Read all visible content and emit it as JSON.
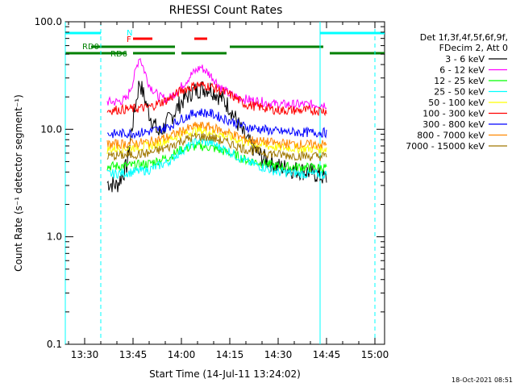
{
  "chart_data": {
    "type": "line",
    "title": "RHESSI Count Rates",
    "xlabel": "Start Time (14-Jul-11 13:24:02)",
    "ylabel": "Count Rate (s⁻¹ detector segment⁻¹)",
    "yscale": "log",
    "ylim": [
      0.1,
      100
    ],
    "xlim": [
      "13:24",
      "15:03"
    ],
    "x_ticks": [
      "13:30",
      "13:45",
      "14:00",
      "14:15",
      "14:30",
      "14:45",
      "15:00"
    ],
    "y_ticks": [
      "0.1",
      "1.0",
      "10.0",
      "100.0"
    ],
    "legend_header": [
      "Det 1f,3f,4f,5f,6f,9f,",
      "FDecim 2, Att 0"
    ],
    "legend_placement": "right",
    "series": [
      {
        "name": "3 - 6 keV",
        "color": "#000000",
        "x": [
          "13:37",
          "13:40",
          "13:43",
          "13:45",
          "13:47",
          "13:50",
          "13:53",
          "13:56",
          "14:00",
          "14:03",
          "14:06",
          "14:09",
          "14:12",
          "14:15",
          "14:20",
          "14:25",
          "14:30",
          "14:35",
          "14:40",
          "14:45"
        ],
        "values": [
          3.2,
          3.0,
          4.5,
          12,
          28,
          14,
          9,
          12,
          18,
          22,
          24,
          24,
          20,
          16,
          8,
          5.5,
          4.5,
          4.2,
          4.0,
          3.5
        ]
      },
      {
        "name": "6 - 12 keV",
        "color": "#ff00ff",
        "x": [
          "13:37",
          "13:40",
          "13:43",
          "13:45",
          "13:47",
          "13:50",
          "13:53",
          "13:56",
          "14:00",
          "14:03",
          "14:06",
          "14:09",
          "14:12",
          "14:15",
          "14:20",
          "14:25",
          "14:30",
          "14:35",
          "14:40",
          "14:45"
        ],
        "values": [
          18,
          18,
          19,
          28,
          48,
          26,
          20,
          19,
          25,
          32,
          38,
          32,
          25,
          21,
          19,
          18,
          17,
          17,
          17,
          17
        ]
      },
      {
        "name": "12 - 25 keV",
        "color": "#00ff00",
        "x": [
          "13:37",
          "13:45",
          "13:50",
          "13:56",
          "14:00",
          "14:05",
          "14:09",
          "14:15",
          "14:20",
          "14:30",
          "14:40",
          "14:45"
        ],
        "values": [
          4.5,
          4.6,
          4.8,
          5.5,
          6.5,
          7.0,
          6.8,
          6.0,
          5.2,
          4.5,
          4.4,
          4.4
        ]
      },
      {
        "name": "25 - 50 keV",
        "color": "#00ffff",
        "x": [
          "13:37",
          "13:45",
          "13:50",
          "13:56",
          "14:00",
          "14:05",
          "14:09",
          "14:15",
          "14:20",
          "14:30",
          "14:40",
          "14:45"
        ],
        "values": [
          3.8,
          4.0,
          4.2,
          5.0,
          6.3,
          7.8,
          7.5,
          6.2,
          5.0,
          4.0,
          3.8,
          3.8
        ]
      },
      {
        "name": "50 - 100 keV",
        "color": "#ffff00",
        "x": [
          "13:37",
          "13:45",
          "13:50",
          "13:56",
          "14:00",
          "14:05",
          "14:09",
          "14:15",
          "14:20",
          "14:30",
          "14:40",
          "14:45"
        ],
        "values": [
          6.5,
          6.8,
          7.0,
          8.0,
          9.0,
          9.8,
          9.5,
          8.5,
          7.5,
          6.8,
          6.6,
          6.6
        ]
      },
      {
        "name": "100 - 300 keV",
        "color": "#ff0000",
        "x": [
          "13:37",
          "13:45",
          "13:50",
          "13:56",
          "14:00",
          "14:05",
          "14:09",
          "14:15",
          "14:20",
          "14:30",
          "14:40",
          "14:45"
        ],
        "values": [
          15,
          15.5,
          16,
          19,
          23,
          26,
          25,
          21,
          17,
          15,
          15,
          15
        ]
      },
      {
        "name": "300 - 800 keV",
        "color": "#0000ff",
        "x": [
          "13:37",
          "13:45",
          "13:50",
          "13:56",
          "14:00",
          "14:05",
          "14:09",
          "14:15",
          "14:20",
          "14:30",
          "14:40",
          "14:45"
        ],
        "values": [
          9,
          9.2,
          9.5,
          10.5,
          12.5,
          14.5,
          14,
          12,
          10.5,
          9.5,
          9.3,
          9.3
        ]
      },
      {
        "name": "800 - 7000 keV",
        "color": "#ff8800",
        "x": [
          "13:37",
          "13:45",
          "13:50",
          "13:56",
          "14:00",
          "14:05",
          "14:09",
          "14:15",
          "14:20",
          "14:30",
          "14:40",
          "14:45"
        ],
        "values": [
          7.2,
          7.4,
          7.6,
          8.5,
          9.6,
          10.8,
          10.5,
          9.2,
          8.0,
          7.4,
          7.2,
          7.2
        ]
      },
      {
        "name": "7000 - 15000 keV",
        "color": "#a07800",
        "x": [
          "13:37",
          "13:45",
          "13:50",
          "13:56",
          "14:00",
          "14:05",
          "14:09",
          "14:15",
          "14:20",
          "14:30",
          "14:40",
          "14:45"
        ],
        "values": [
          5.6,
          5.8,
          6.0,
          6.8,
          7.8,
          8.6,
          8.4,
          7.4,
          6.5,
          5.8,
          5.6,
          5.6
        ]
      }
    ],
    "annotations": [
      {
        "text": "N",
        "color": "#00ffff"
      },
      {
        "text": "F",
        "color": "#ff0000"
      },
      {
        "text": "RD0",
        "color": "#008000"
      },
      {
        "text": "RD6",
        "color": "#008000"
      }
    ],
    "bars": {
      "night": {
        "color": "#00ffff",
        "intervals": [
          [
            "13:24",
            "13:35"
          ],
          [
            "14:43",
            "15:03"
          ]
        ]
      },
      "flare": {
        "color": "#ff0000",
        "intervals": [
          [
            "13:45",
            "13:51"
          ],
          [
            "14:04",
            "14:08"
          ]
        ]
      },
      "rd_upper": {
        "color": "#008000",
        "intervals": [
          [
            "13:32",
            "13:58"
          ],
          [
            "14:15",
            "14:44"
          ]
        ]
      },
      "rd_lower": {
        "color": "#008000",
        "intervals": [
          [
            "13:24",
            "13:43"
          ],
          [
            "13:45",
            "13:58"
          ],
          [
            "14:00",
            "14:14"
          ],
          [
            "14:46",
            "15:03"
          ]
        ]
      }
    },
    "vlines": {
      "color": "#00ffff",
      "solid": [
        "13:24",
        "14:43"
      ],
      "dashed": [
        "13:35",
        "15:00"
      ]
    },
    "timestamp": "18-Oct-2021 08:51"
  }
}
